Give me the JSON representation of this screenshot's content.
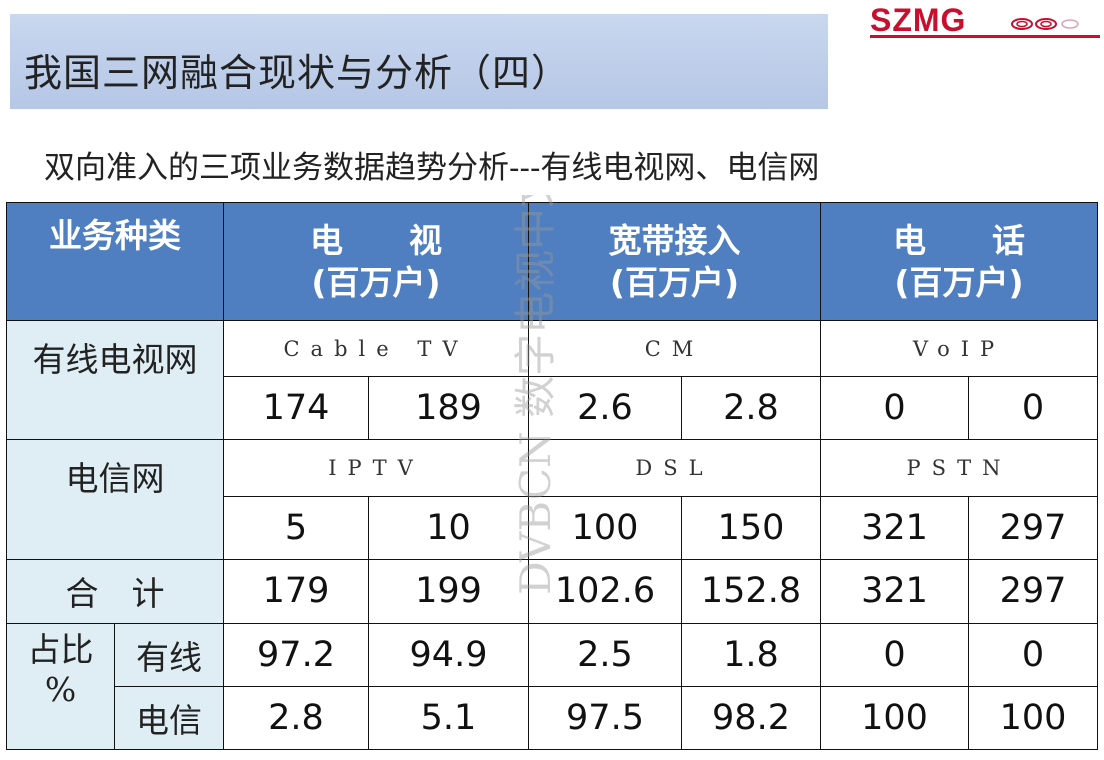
{
  "page": {
    "title": "我国三网融合现状与分析（四）",
    "subtitle": "双向准入的三项业务数据趋势分析---有线电视网、电信网"
  },
  "logo": {
    "text": "SZMG",
    "icon": "szmg-swirl-mark",
    "color": "#c8102e"
  },
  "watermark": {
    "text": "DVBCN 数字电视中文网"
  },
  "table": {
    "header": {
      "category": "业务种类",
      "tv": {
        "name": "电　　视",
        "unit": "(百万户)"
      },
      "broadband": {
        "name": "宽带接入",
        "unit": "(百万户)"
      },
      "phone": {
        "name": "电　　话",
        "unit": "(百万户)"
      }
    },
    "rows": {
      "cable": {
        "label": "有线电视网",
        "tv_tech": "Cable TV",
        "broadband_tech": "CM",
        "phone_tech": "VoIP",
        "values": [
          "174",
          "189",
          "2.6",
          "2.8",
          "0",
          "0"
        ]
      },
      "telecom": {
        "label": "电信网",
        "tv_tech": "IPTV",
        "broadband_tech": "DSL",
        "phone_tech": "PSTN",
        "values": [
          "5",
          "10",
          "100",
          "150",
          "321",
          "297"
        ]
      },
      "total": {
        "label": "合　计",
        "values": [
          "179",
          "199",
          "102.6",
          "152.8",
          "321",
          "297"
        ]
      },
      "share": {
        "label": "占比",
        "label_unit": "%",
        "cable_label": "有线",
        "cable_values": [
          "97.2",
          "94.9",
          "2.5",
          "1.8",
          "0",
          "0"
        ],
        "telecom_label": "电信",
        "telecom_values": [
          "2.8",
          "5.1",
          "97.5",
          "98.2",
          "100",
          "100"
        ]
      }
    }
  },
  "colors": {
    "header_bg": "#4f7fc0",
    "label_bg": "#dfeef4",
    "title_bar_bg": "#c0d0ec",
    "watermark": "#9a9a9a"
  }
}
